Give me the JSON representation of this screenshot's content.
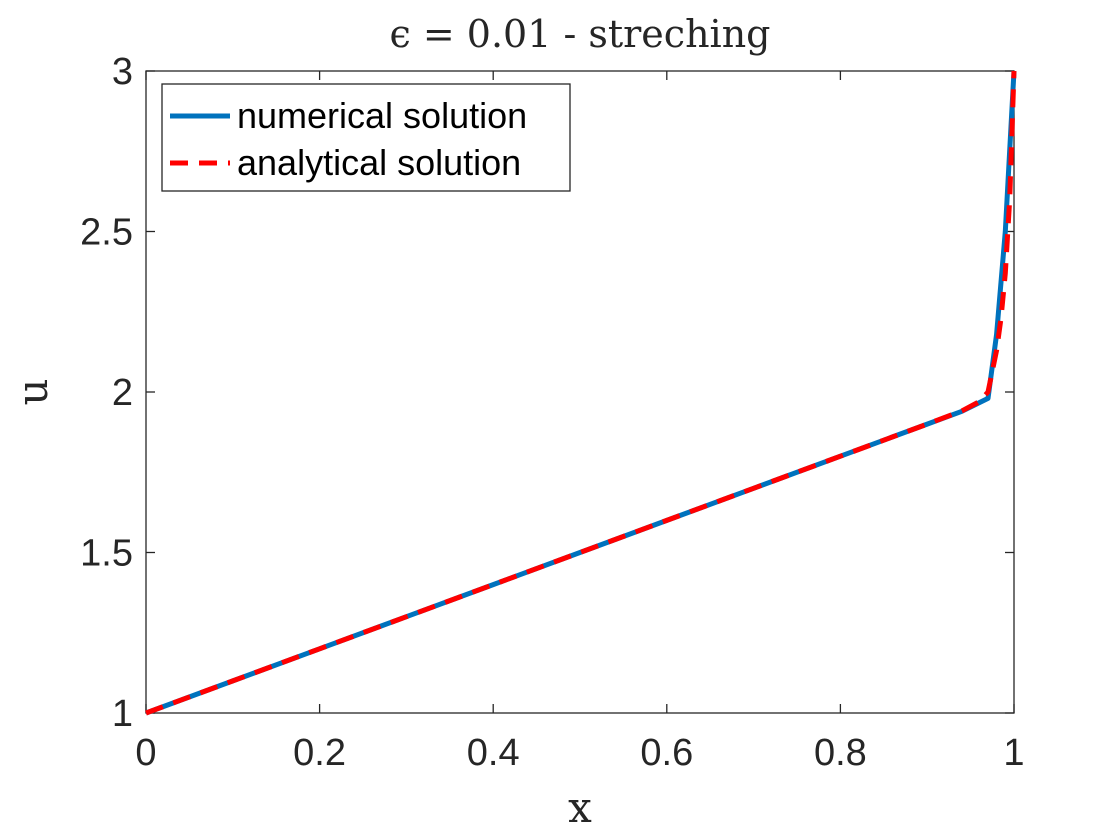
{
  "chart_data": {
    "type": "line",
    "title": "ϵ = 0.01 - streching",
    "xlabel": "x",
    "ylabel": "u",
    "xlim": [
      0,
      1
    ],
    "ylim": [
      1,
      3
    ],
    "xticks": [
      0,
      0.2,
      0.4,
      0.6,
      0.8,
      1
    ],
    "xtick_labels": [
      "0",
      "0.2",
      "0.4",
      "0.6",
      "0.8",
      "1"
    ],
    "yticks": [
      1,
      1.5,
      2,
      2.5,
      3
    ],
    "ytick_labels": [
      "1",
      "1.5",
      "2",
      "2.5",
      "3"
    ],
    "grid": false,
    "legend_position": "top-left",
    "series": [
      {
        "name": "numerical solution",
        "color": "#0072BD",
        "style": "solid",
        "x": [
          0,
          0.1,
          0.2,
          0.3,
          0.4,
          0.5,
          0.6,
          0.7,
          0.8,
          0.9,
          0.94,
          0.97,
          0.98,
          0.99,
          1.0
        ],
        "y": [
          1.0,
          1.1,
          1.2,
          1.3,
          1.4,
          1.5,
          1.6,
          1.7,
          1.8,
          1.9,
          1.94,
          1.98,
          2.18,
          2.5,
          3.0
        ]
      },
      {
        "name": "analytical solution",
        "color": "#FF0000",
        "style": "dashed",
        "x": [
          0,
          0.1,
          0.2,
          0.3,
          0.4,
          0.5,
          0.6,
          0.7,
          0.8,
          0.9,
          0.94,
          0.96,
          0.97,
          0.98,
          0.985,
          0.99,
          0.995,
          1.0
        ],
        "y": [
          1.0,
          1.1,
          1.2,
          1.3,
          1.4,
          1.5,
          1.6,
          1.7,
          1.8,
          1.9,
          1.941,
          1.97,
          2.0,
          2.13,
          2.23,
          2.37,
          2.6,
          3.0
        ]
      }
    ]
  }
}
